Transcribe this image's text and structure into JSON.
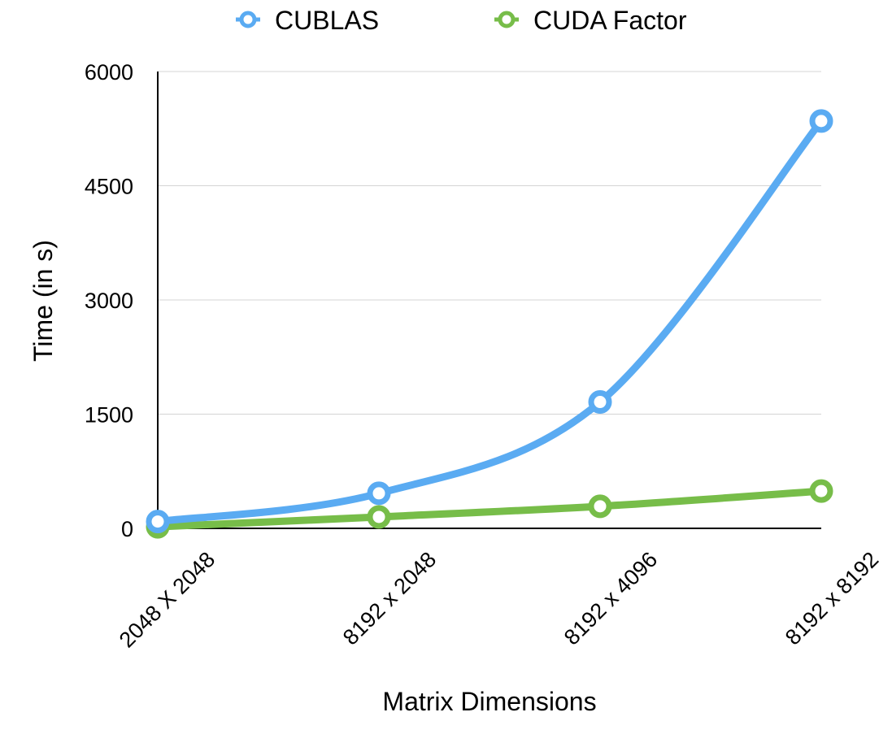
{
  "chart_data": {
    "type": "line",
    "categories": [
      "2048 X 2048",
      "8192 x 2048",
      "8192 x 4096",
      "8192 x 8192"
    ],
    "series": [
      {
        "name": "CUBLAS",
        "color": "#5aabf2",
        "values": [
          90,
          460,
          1660,
          5350
        ]
      },
      {
        "name": "CUDA Factor",
        "color": "#77bd49",
        "values": [
          20,
          150,
          290,
          490
        ]
      }
    ],
    "xlabel": "Matrix Dimensions",
    "ylabel": "Time (in s)",
    "ylim": [
      0,
      6000
    ],
    "yticks": [
      0,
      1500,
      3000,
      4500,
      6000
    ],
    "grid": true,
    "legend": "top"
  }
}
